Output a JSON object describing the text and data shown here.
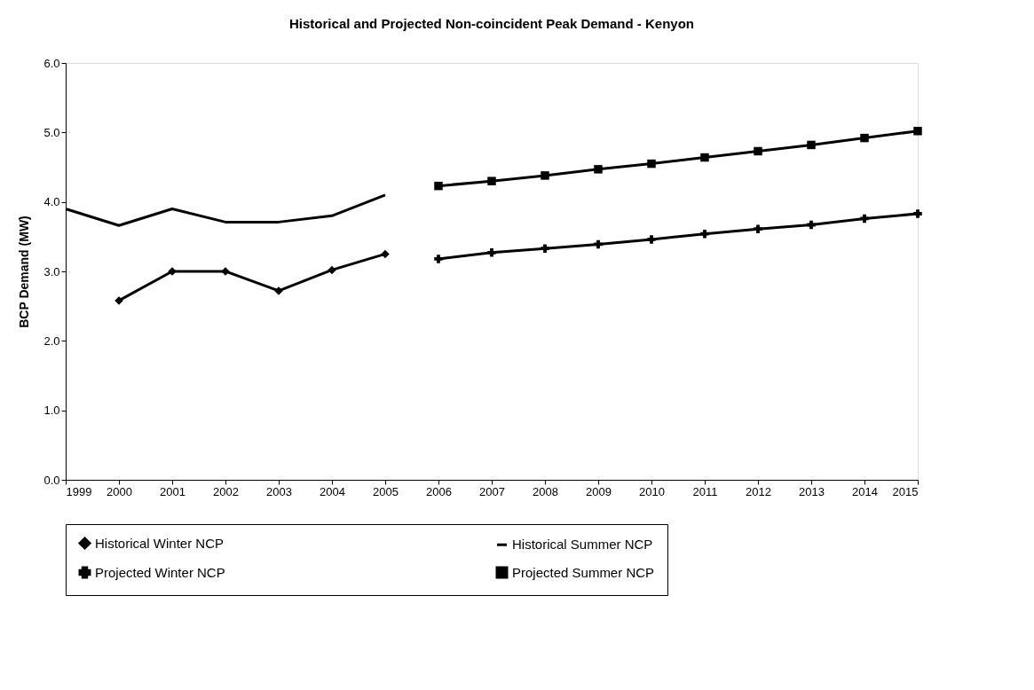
{
  "chart_data": {
    "type": "line",
    "title": "Historical and Projected Non-coincident Peak Demand - Kenyon",
    "ylabel": "BCP Demand (MW)",
    "xlim": [
      1999,
      2015
    ],
    "xticks": [
      1999,
      2000,
      2001,
      2002,
      2003,
      2004,
      2005,
      2006,
      2007,
      2008,
      2009,
      2010,
      2011,
      2012,
      2013,
      2014,
      2015
    ],
    "ylim": [
      0,
      6
    ],
    "yticks": [
      {
        "value": 0,
        "label": "0.0"
      },
      {
        "value": 1,
        "label": "1.0"
      },
      {
        "value": 2,
        "label": "2.0"
      },
      {
        "value": 3,
        "label": "3.0"
      },
      {
        "value": 4,
        "label": "4.0"
      },
      {
        "value": 5,
        "label": "5.0"
      },
      {
        "value": 6,
        "label": "6.0"
      }
    ],
    "grid": false,
    "legend": "bottom",
    "line_style": "solid",
    "series": [
      {
        "name": "Historical Winter NCP",
        "color": "#000000",
        "marker": "diamond",
        "x": [
          2000,
          2001,
          2002,
          2003,
          2004,
          2005
        ],
        "values": [
          2.58,
          3.0,
          3.0,
          2.72,
          3.02,
          3.25
        ]
      },
      {
        "name": "Historical Summer NCP",
        "color": "#000000",
        "marker": "none",
        "x": [
          1999,
          2000,
          2001,
          2002,
          2003,
          2004,
          2005
        ],
        "values": [
          3.9,
          3.66,
          3.9,
          3.71,
          3.71,
          3.8,
          4.1
        ]
      },
      {
        "name": "Projected Winter NCP",
        "color": "#000000",
        "marker": "cross",
        "x": [
          2006,
          2007,
          2008,
          2009,
          2010,
          2011,
          2012,
          2013,
          2014,
          2015
        ],
        "values": [
          3.18,
          3.27,
          3.33,
          3.39,
          3.46,
          3.54,
          3.61,
          3.67,
          3.76,
          3.83
        ]
      },
      {
        "name": "Projected Summer NCP",
        "color": "#000000",
        "marker": "square",
        "x": [
          2006,
          2007,
          2008,
          2009,
          2010,
          2011,
          2012,
          2013,
          2014,
          2015
        ],
        "values": [
          4.23,
          4.3,
          4.38,
          4.47,
          4.55,
          4.64,
          4.73,
          4.82,
          4.92,
          5.02
        ]
      }
    ]
  }
}
